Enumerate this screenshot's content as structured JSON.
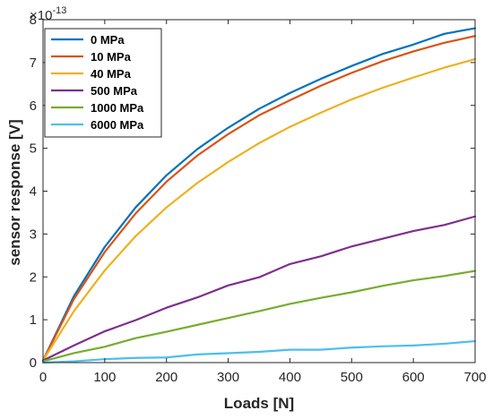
{
  "chart_data": {
    "type": "line",
    "xlabel": "Loads [N]",
    "ylabel": "sensor response [V]",
    "y_exponent_base": "×10",
    "y_exponent": "-13",
    "xlim": [
      0,
      700
    ],
    "ylim": [
      0,
      8
    ],
    "xticks": [
      0,
      100,
      200,
      300,
      400,
      500,
      600,
      700
    ],
    "yticks": [
      0,
      1,
      2,
      3,
      4,
      5,
      6,
      7,
      8
    ],
    "grid": false,
    "legend_position": "top-left",
    "x": [
      0,
      50,
      100,
      150,
      200,
      250,
      300,
      350,
      400,
      450,
      500,
      550,
      600,
      650,
      700
    ],
    "series": [
      {
        "name": "0 MPa",
        "color": "#0072BD",
        "values": [
          0.05,
          1.55,
          2.7,
          3.62,
          4.37,
          4.98,
          5.48,
          5.92,
          6.29,
          6.62,
          6.92,
          7.2,
          7.42,
          7.67,
          7.8
        ]
      },
      {
        "name": "10 MPa",
        "color": "#D95319",
        "values": [
          0.05,
          1.48,
          2.58,
          3.48,
          4.22,
          4.83,
          5.33,
          5.77,
          6.12,
          6.46,
          6.76,
          7.03,
          7.26,
          7.46,
          7.62
        ]
      },
      {
        "name": "40 MPa",
        "color": "#EDB120",
        "values": [
          0.05,
          1.2,
          2.15,
          2.95,
          3.62,
          4.19,
          4.68,
          5.12,
          5.5,
          5.83,
          6.14,
          6.41,
          6.65,
          6.88,
          7.08
        ]
      },
      {
        "name": "500 MPa",
        "color": "#7E2F8E",
        "values": [
          0.05,
          0.4,
          0.73,
          0.99,
          1.28,
          1.52,
          1.8,
          1.99,
          2.3,
          2.48,
          2.71,
          2.89,
          3.07,
          3.21,
          3.41
        ]
      },
      {
        "name": "1000 MPa",
        "color": "#77AC30",
        "values": [
          0.03,
          0.22,
          0.37,
          0.57,
          0.72,
          0.88,
          1.04,
          1.2,
          1.37,
          1.51,
          1.64,
          1.79,
          1.92,
          2.02,
          2.14
        ]
      },
      {
        "name": "6000 MPa",
        "color": "#4DBEEE",
        "values": [
          0.0,
          0.03,
          0.08,
          0.11,
          0.12,
          0.19,
          0.22,
          0.25,
          0.3,
          0.3,
          0.35,
          0.38,
          0.4,
          0.44,
          0.5
        ]
      }
    ]
  }
}
